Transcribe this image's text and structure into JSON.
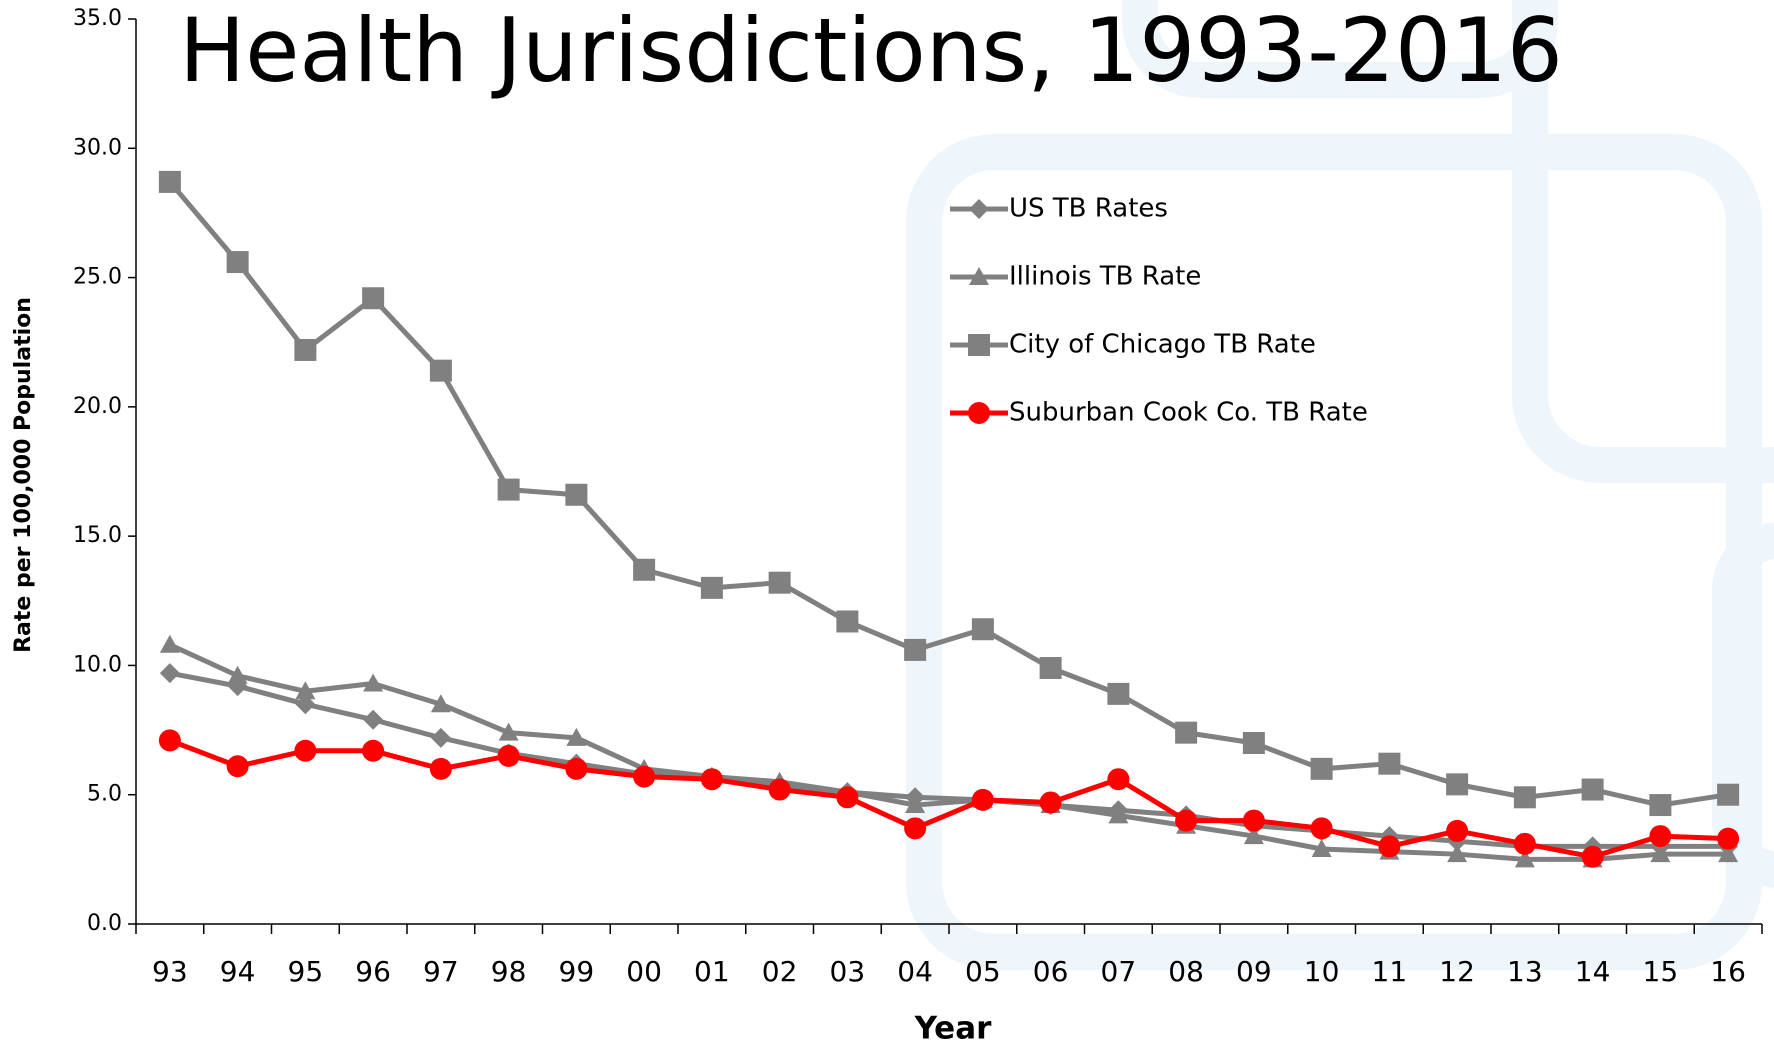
{
  "chart_data": {
    "type": "line",
    "title": "Health Jurisdictions, 1993-2016",
    "x_label": "Year",
    "y_label": "Rate per 100,000 Population",
    "categories": [
      "93",
      "94",
      "95",
      "96",
      "97",
      "98",
      "99",
      "00",
      "01",
      "02",
      "03",
      "04",
      "05",
      "06",
      "07",
      "08",
      "09",
      "10",
      "11",
      "12",
      "13",
      "14",
      "15",
      "16"
    ],
    "series": [
      {
        "name": "US TB Rates",
        "color": "#808080",
        "marker": "diamond",
        "values": [
          9.7,
          9.2,
          8.5,
          7.9,
          7.2,
          6.6,
          6.2,
          5.8,
          5.6,
          5.3,
          5.1,
          4.9,
          4.8,
          4.6,
          4.4,
          4.2,
          3.8,
          3.6,
          3.4,
          3.2,
          3.0,
          3.0,
          3.0,
          3.0
        ]
      },
      {
        "name": "Illinois TB Rate",
        "color": "#808080",
        "marker": "triangle",
        "values": [
          10.8,
          9.6,
          9.0,
          9.3,
          8.5,
          7.4,
          7.2,
          6.0,
          5.7,
          5.5,
          5.1,
          4.6,
          4.8,
          4.6,
          4.2,
          3.8,
          3.4,
          2.9,
          2.8,
          2.7,
          2.5,
          2.5,
          2.7,
          2.7
        ]
      },
      {
        "name": "City of Chicago TB Rate",
        "color": "#808080",
        "marker": "square",
        "values": [
          28.7,
          25.6,
          22.2,
          24.2,
          21.4,
          16.8,
          16.6,
          13.7,
          13.0,
          13.2,
          11.7,
          10.6,
          11.4,
          9.9,
          8.9,
          7.4,
          7.0,
          6.0,
          6.2,
          5.4,
          4.9,
          5.2,
          4.6,
          5.0
        ]
      },
      {
        "name": "Suburban Cook Co. TB Rate",
        "color": "#ff0000",
        "marker": "circle",
        "values": [
          7.1,
          6.1,
          6.7,
          6.7,
          6.0,
          6.5,
          6.0,
          5.7,
          5.6,
          5.2,
          4.9,
          3.7,
          4.8,
          4.7,
          5.6,
          4.0,
          4.0,
          3.7,
          3.0,
          3.6,
          3.1,
          2.6,
          3.4,
          3.3
        ]
      }
    ],
    "ylim": [
      0,
      35
    ],
    "yticks": [
      {
        "value": 0,
        "label": "0.0"
      },
      {
        "value": 5,
        "label": "5.0"
      },
      {
        "value": 10,
        "label": "10.0"
      },
      {
        "value": 15,
        "label": "15.0"
      },
      {
        "value": 20,
        "label": "20.0"
      },
      {
        "value": 25,
        "label": "25.0"
      },
      {
        "value": 30,
        "label": "30.0"
      },
      {
        "value": 35,
        "label": "35.0"
      }
    ],
    "grid": false,
    "legend": "upper-right"
  }
}
